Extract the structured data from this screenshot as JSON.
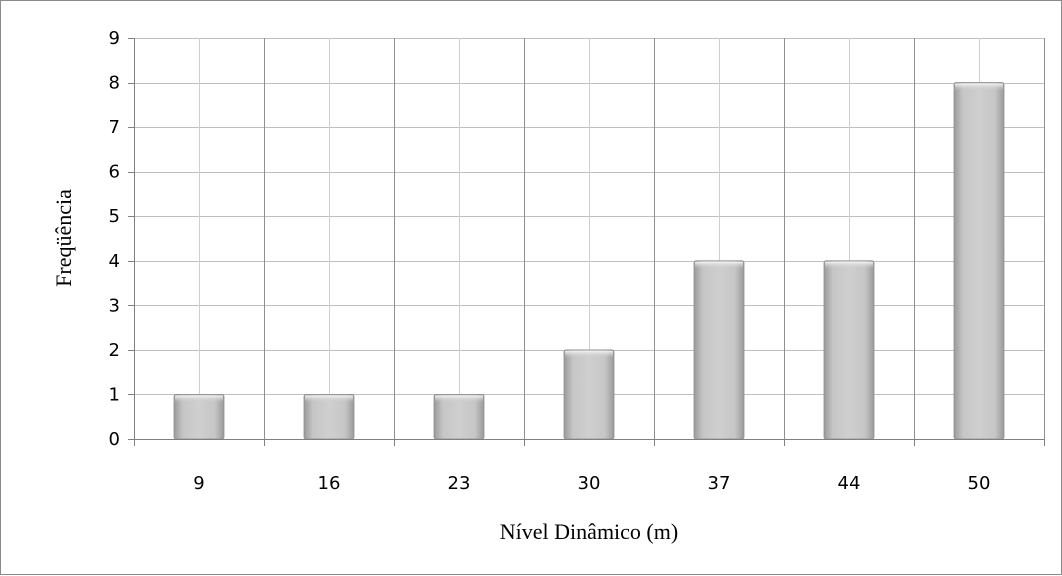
{
  "chart_data": {
    "type": "bar",
    "categories": [
      "9",
      "16",
      "23",
      "30",
      "37",
      "44",
      "50"
    ],
    "values": [
      1,
      1,
      1,
      2,
      4,
      4,
      8
    ],
    "xlabel": "Nível Dinâmico (m)",
    "ylabel": "Freqüência",
    "ylim": [
      0,
      9
    ],
    "yticks": [
      0,
      1,
      2,
      3,
      4,
      5,
      6,
      7,
      8,
      9
    ],
    "grid": true,
    "legend": "none"
  },
  "colors": {
    "bar_fill": "#c8c8c8",
    "bar_edge": "#8e8e8e",
    "grid": "#bfbfbf",
    "axis": "#808080"
  }
}
